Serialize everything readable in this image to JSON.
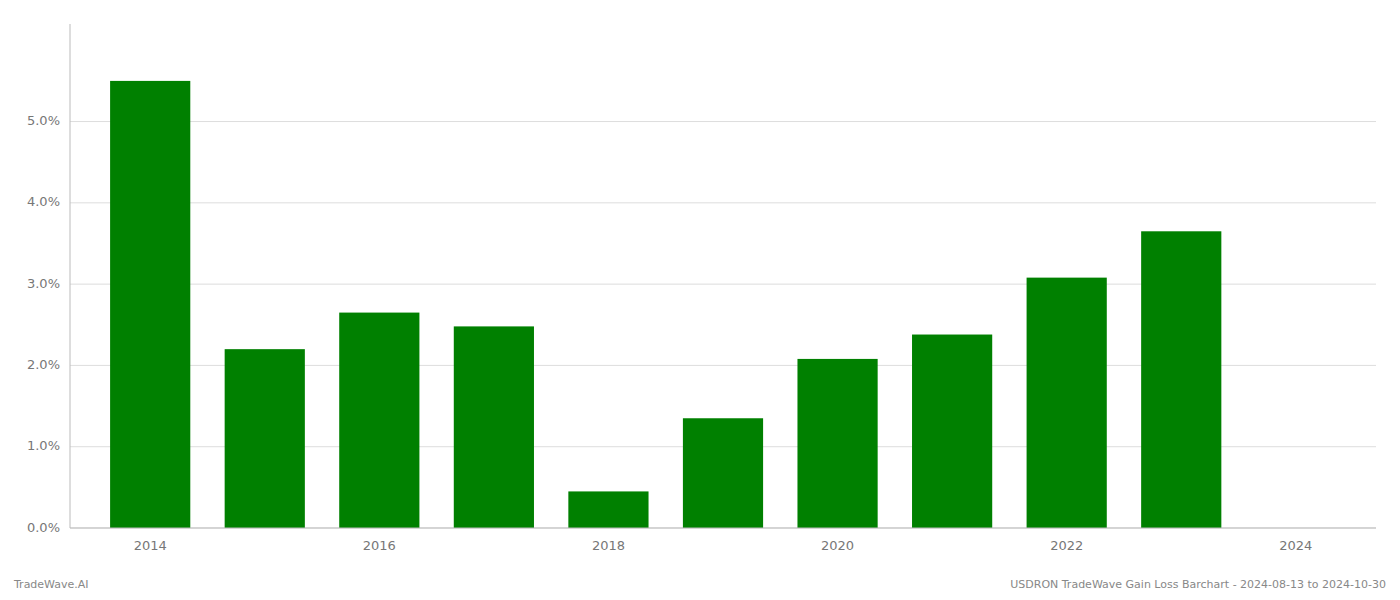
{
  "chart_data": {
    "type": "bar",
    "x": [
      2014,
      2015,
      2016,
      2017,
      2018,
      2019,
      2020,
      2021,
      2022,
      2023
    ],
    "values": [
      0.055,
      0.022,
      0.0265,
      0.0248,
      0.0045,
      0.0135,
      0.0208,
      0.0238,
      0.0308,
      0.0365
    ],
    "color": "#008000",
    "xlim": [
      2013.3,
      2024.7
    ],
    "xticks": [
      2014,
      2016,
      2018,
      2020,
      2022,
      2024
    ],
    "ylim": [
      0,
      0.062
    ],
    "yticks": [
      {
        "value": 0.0,
        "label": "0.0%"
      },
      {
        "value": 0.01,
        "label": "1.0%"
      },
      {
        "value": 0.02,
        "label": "2.0%"
      },
      {
        "value": 0.03,
        "label": "3.0%"
      },
      {
        "value": 0.04,
        "label": "4.0%"
      },
      {
        "value": 0.05,
        "label": "5.0%"
      }
    ],
    "grid": true,
    "annotations": [
      "TradeWave.AI",
      "USDRON TradeWave Gain Loss Barchart - 2024-08-13 to 2024-10-30"
    ]
  }
}
